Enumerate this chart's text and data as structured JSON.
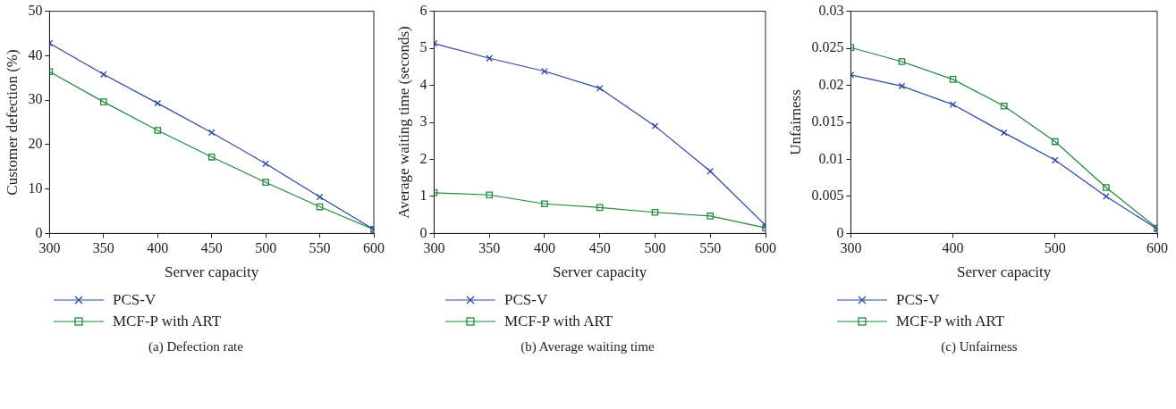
{
  "chart_data": [
    {
      "type": "line",
      "xlabel": "Server capacity",
      "ylabel": "Customer defection (%)",
      "x": [
        300,
        350,
        400,
        450,
        500,
        550,
        600
      ],
      "xlim": [
        300,
        600
      ],
      "xticks": [
        300,
        350,
        400,
        450,
        500,
        550,
        600
      ],
      "ylim": [
        0,
        50
      ],
      "yticks": [
        0,
        10,
        20,
        30,
        40,
        50
      ],
      "grid": false,
      "legend": "bottom left",
      "annotations": [
        "(a)  Defection rate"
      ],
      "series": [
        {
          "name": "PCS-V",
          "color": "#2e45a8",
          "marker": "cross",
          "values": [
            42.8,
            35.8,
            29.3,
            22.7,
            15.7,
            8.2,
            0.9
          ]
        },
        {
          "name": "MCF-P with ART",
          "color": "#1e8a3c",
          "marker": "square",
          "values": [
            36.4,
            29.6,
            23.2,
            17.2,
            11.5,
            6.0,
            0.9
          ]
        }
      ]
    },
    {
      "type": "line",
      "xlabel": "Server capacity",
      "ylabel": "Average waiting time (seconds)",
      "x": [
        300,
        350,
        400,
        450,
        500,
        550,
        600
      ],
      "xlim": [
        300,
        600
      ],
      "xticks": [
        300,
        350,
        400,
        450,
        500,
        550,
        600
      ],
      "ylim": [
        0,
        6
      ],
      "yticks": [
        0,
        1,
        2,
        3,
        4,
        5,
        6
      ],
      "grid": false,
      "legend": "bottom left",
      "annotations": [
        "(b)  Average waiting time"
      ],
      "series": [
        {
          "name": "PCS-V",
          "color": "#2e45a8",
          "marker": "cross",
          "values": [
            5.13,
            4.73,
            4.38,
            3.92,
            2.9,
            1.68,
            0.22
          ]
        },
        {
          "name": "MCF-P with ART",
          "color": "#1e8a3c",
          "marker": "square",
          "values": [
            1.1,
            1.04,
            0.8,
            0.7,
            0.57,
            0.47,
            0.15
          ]
        }
      ]
    },
    {
      "type": "line",
      "xlabel": "Server capacity",
      "ylabel": "Unfairness",
      "x": [
        300,
        350,
        400,
        450,
        500,
        550,
        600
      ],
      "xlim": [
        300,
        600
      ],
      "xticks": [
        300,
        400,
        500,
        600
      ],
      "ylim": [
        0,
        0.03
      ],
      "yticks": [
        0,
        0.005,
        0.01,
        0.015,
        0.02,
        0.025,
        0.03
      ],
      "grid": false,
      "legend": "bottom left",
      "annotations": [
        "(c)  Unfairness"
      ],
      "series": [
        {
          "name": "PCS-V",
          "color": "#2e45a8",
          "marker": "cross",
          "values": [
            0.0214,
            0.0199,
            0.0174,
            0.0136,
            0.0099,
            0.005,
            0.0006
          ]
        },
        {
          "name": "MCF-P with ART",
          "color": "#1e8a3c",
          "marker": "square",
          "values": [
            0.0251,
            0.0232,
            0.0208,
            0.0172,
            0.0124,
            0.0062,
            0.0007
          ]
        }
      ]
    }
  ]
}
